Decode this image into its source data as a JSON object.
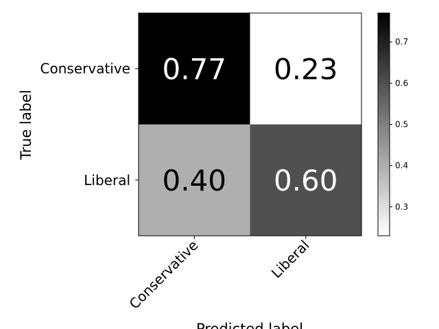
{
  "chart_data": {
    "type": "heatmap",
    "title": "",
    "xlabel": "Predicted label",
    "ylabel": "True label",
    "x_categories": [
      "Conservative",
      "Liberal"
    ],
    "y_categories": [
      "Conservative",
      "Liberal"
    ],
    "values": [
      [
        0.77,
        0.23
      ],
      [
        0.4,
        0.6
      ]
    ],
    "value_labels": [
      [
        "0.77",
        "0.23"
      ],
      [
        "0.40",
        "0.60"
      ]
    ],
    "colormap": "Greys",
    "colorbar": {
      "range": [
        0.23,
        0.77
      ],
      "ticks": [
        0.3,
        0.4,
        0.5,
        0.6,
        0.7
      ],
      "tick_labels": [
        "0.3",
        "0.4",
        "0.5",
        "0.6",
        "0.7"
      ]
    },
    "grid": false
  }
}
